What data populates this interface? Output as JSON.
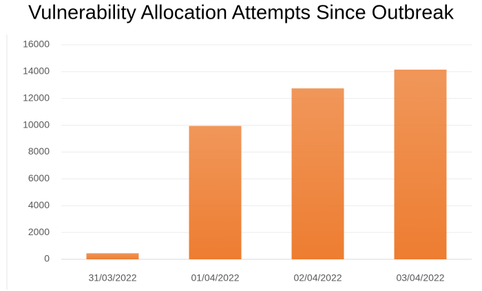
{
  "chart_data": {
    "type": "bar",
    "title": "Vulnerability Allocation Attempts Since Outbreak",
    "categories": [
      "31/03/2022",
      "01/04/2022",
      "02/04/2022",
      "03/04/2022"
    ],
    "values": [
      450,
      9950,
      12750,
      14150
    ],
    "color": "#ED7D31",
    "ylim": [
      0,
      16000
    ],
    "yticks": [
      0,
      2000,
      4000,
      6000,
      8000,
      10000,
      12000,
      14000,
      16000
    ],
    "grid": true
  }
}
